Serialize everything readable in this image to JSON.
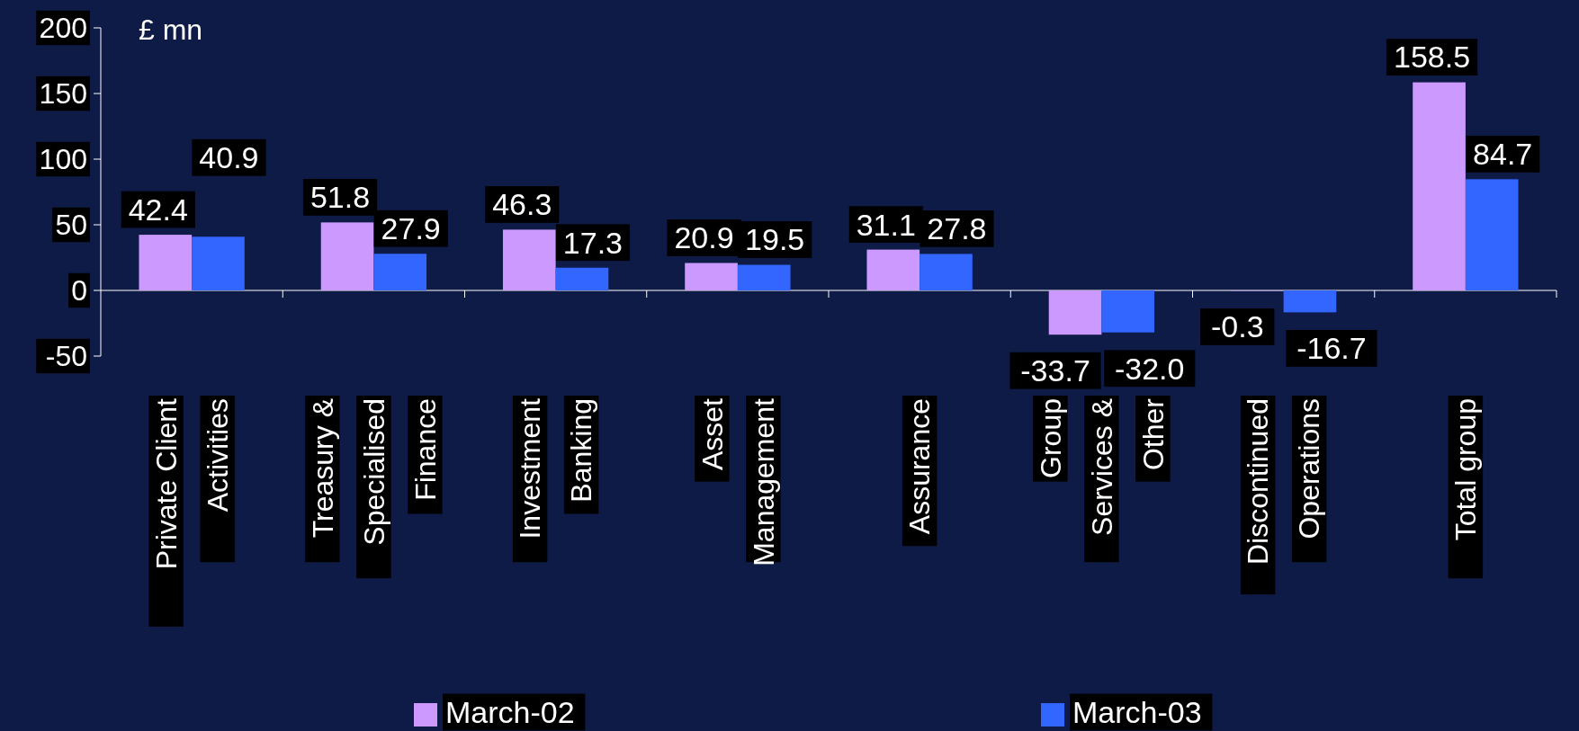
{
  "chart_data": {
    "type": "bar",
    "ylabel": "£ mn",
    "categories": [
      "Private Client\nActivities",
      "Treasury &\nSpecialised\nFinance",
      "Investment\nBanking",
      "Asset\nManagement",
      "Assurance",
      "Group\nServices &\nOther",
      "Discontinued\nOperations",
      "Total group"
    ],
    "series": [
      {
        "name": "March-02",
        "color": "#cc99ff",
        "values": [
          42.4,
          51.8,
          46.3,
          20.9,
          31.1,
          -33.7,
          -0.3,
          158.5
        ],
        "value_labels": [
          "42.4",
          "51.8",
          "46.3",
          "20.9",
          "31.1",
          "-33.7",
          "-0.3",
          "158.5"
        ]
      },
      {
        "name": "March-03",
        "color": "#3366ff",
        "values": [
          40.9,
          27.9,
          17.3,
          19.5,
          27.8,
          -32.0,
          -16.7,
          84.7
        ],
        "value_labels": [
          "40.9",
          "27.9",
          "17.3",
          "19.5",
          "27.8",
          "-32.0",
          "-16.7",
          "84.7"
        ]
      }
    ],
    "ylim": [
      -50,
      200
    ],
    "yticks": [
      -50,
      0,
      50,
      100,
      150,
      200
    ],
    "legend": "bottom"
  }
}
